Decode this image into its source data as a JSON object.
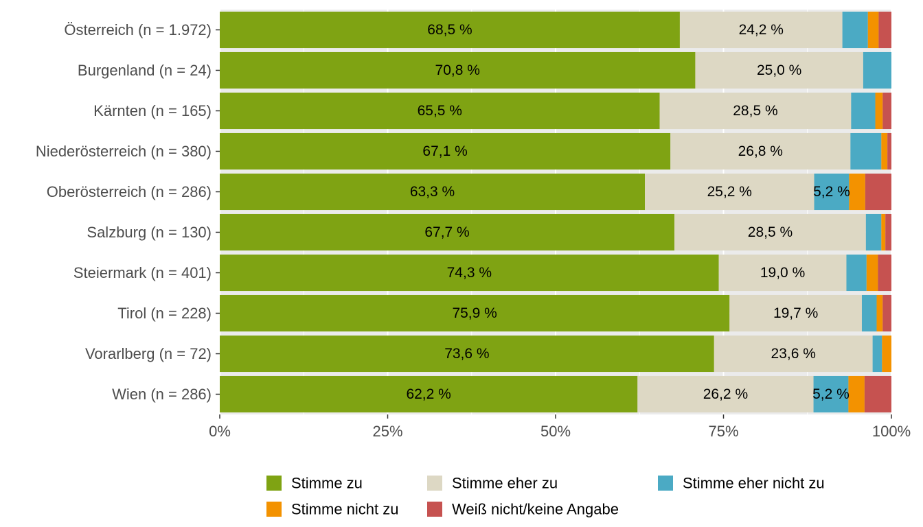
{
  "chart_data": {
    "type": "bar",
    "orientation": "horizontal",
    "stacked": true,
    "title": "",
    "xlabel": "",
    "ylabel": "",
    "xlim": [
      0,
      100
    ],
    "x_ticks": [
      "0%",
      "25%",
      "50%",
      "75%",
      "100%"
    ],
    "grid": true,
    "legend_position": "bottom",
    "categories": [
      "Österreich (n = 1.972)",
      "Burgenland (n = 24)",
      "Kärnten (n = 165)",
      "Niederösterreich (n = 380)",
      "Oberösterreich (n = 286)",
      "Salzburg (n = 130)",
      "Steiermark (n = 401)",
      "Tirol (n = 228)",
      "Vorarlberg (n = 72)",
      "Wien (n = 286)"
    ],
    "series": [
      {
        "name": "Stimme zu",
        "color": "#7fa313",
        "values": [
          68.5,
          70.8,
          65.5,
          67.1,
          63.3,
          67.7,
          74.3,
          75.9,
          73.6,
          62.2
        ],
        "labels": [
          "68,5 %",
          "70,8 %",
          "65,5 %",
          "67,1 %",
          "63,3 %",
          "67,7 %",
          "74,3 %",
          "75,9 %",
          "73,6 %",
          "62,2 %"
        ]
      },
      {
        "name": "Stimme eher zu",
        "color": "#ddd8c4",
        "values": [
          24.2,
          25.0,
          28.5,
          26.8,
          25.2,
          28.5,
          19.0,
          19.7,
          23.6,
          26.2
        ],
        "labels": [
          "24,2 %",
          "25,0 %",
          "28,5 %",
          "26,8 %",
          "25,2 %",
          "28,5 %",
          "19,0 %",
          "19,7 %",
          "23,6 %",
          "26,2 %"
        ]
      },
      {
        "name": "Stimme eher nicht zu",
        "color": "#4baac4",
        "values": [
          3.8,
          4.2,
          3.6,
          4.6,
          5.2,
          2.3,
          3.0,
          2.2,
          1.4,
          5.2
        ],
        "labels": [
          "",
          "",
          "",
          "",
          "5,2 %",
          "",
          "",
          "",
          "",
          "5,2 %"
        ]
      },
      {
        "name": "Stimme nicht zu",
        "color": "#f39200",
        "values": [
          1.6,
          0.0,
          1.1,
          0.9,
          2.4,
          0.6,
          1.7,
          0.9,
          1.4,
          2.4
        ],
        "labels": [
          "",
          "",
          "",
          "",
          "",
          "",
          "",
          "",
          "",
          ""
        ]
      },
      {
        "name": "Weiß nicht/keine Angabe",
        "color": "#c65250",
        "values": [
          1.9,
          0.0,
          1.3,
          0.6,
          3.9,
          0.9,
          2.0,
          1.3,
          0.0,
          4.0
        ],
        "labels": [
          "",
          "",
          "",
          "",
          "",
          "",
          "",
          "",
          "",
          ""
        ]
      }
    ],
    "legend_order": [
      "Stimme zu",
      "Stimme eher zu",
      "Stimme eher nicht zu",
      "Stimme nicht zu",
      "Weiß nicht/keine Angabe"
    ]
  }
}
